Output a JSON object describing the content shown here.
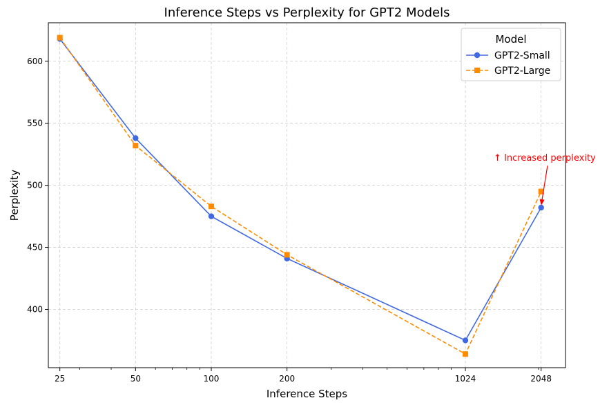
{
  "chart_data": {
    "type": "line",
    "title": "Inference Steps vs Perplexity for GPT2 Models",
    "xlabel": "Inference Steps",
    "ylabel": "Perplexity",
    "x_scale": "log",
    "x": [
      25,
      50,
      100,
      200,
      1024,
      2048
    ],
    "x_tick_labels": [
      "25",
      "50",
      "100",
      "200",
      "1024",
      "2048"
    ],
    "y_ticks": [
      400,
      450,
      500,
      550,
      600
    ],
    "ylim": [
      353,
      631
    ],
    "grid": true,
    "legend": {
      "title": "Model",
      "placement": "top-right"
    },
    "series": [
      {
        "name": "GPT2-Small",
        "values": [
          618,
          538,
          475,
          441,
          375,
          482
        ],
        "color": "#4169e1",
        "marker": "circle",
        "line_style": "solid"
      },
      {
        "name": "GPT2-Large",
        "values": [
          619,
          532,
          483,
          444,
          364,
          495
        ],
        "color": "#ff8c00",
        "marker": "square",
        "line_style": "dashed"
      }
    ],
    "annotation": {
      "text": "↑ Increased perplexity",
      "color": "#ff0000",
      "x": 2048,
      "y": 482
    }
  }
}
